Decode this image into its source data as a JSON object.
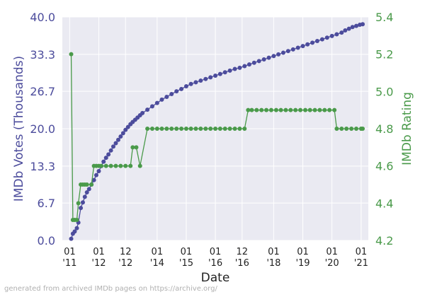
{
  "chart_data": {
    "type": "line",
    "xlabel": "Date",
    "ylabel_left": "IMDb Votes (Thousands)",
    "ylabel_right": "IMDb Rating",
    "x_ticks": [
      {
        "date": "2011-01-01",
        "line1": "01",
        "line2": "'11"
      },
      {
        "date": "2012-01-01",
        "line1": "01",
        "line2": "'12"
      },
      {
        "date": "2012-12-01",
        "line1": "12",
        "line2": "'12"
      },
      {
        "date": "2014-01-01",
        "line1": "01",
        "line2": "'14"
      },
      {
        "date": "2015-01-01",
        "line1": "01",
        "line2": "'15"
      },
      {
        "date": "2016-01-01",
        "line1": "01",
        "line2": "'16"
      },
      {
        "date": "2016-12-01",
        "line1": "12",
        "line2": "'16"
      },
      {
        "date": "2018-01-01",
        "line1": "01",
        "line2": "'18"
      },
      {
        "date": "2019-01-01",
        "line1": "01",
        "line2": "'19"
      },
      {
        "date": "2020-01-01",
        "line1": "01",
        "line2": "'20"
      },
      {
        "date": "2021-01-01",
        "line1": "01",
        "line2": "'21"
      }
    ],
    "xlim": [
      "2010-10-01",
      "2021-04-01"
    ],
    "y_left_ticks": [
      "0.0",
      "6.7",
      "13.3",
      "20.0",
      "26.7",
      "33.3",
      "40.0"
    ],
    "y_left_lim": [
      0,
      40
    ],
    "y_right_ticks": [
      "4.2",
      "4.4",
      "4.6",
      "4.8",
      "5.0",
      "5.2",
      "5.4"
    ],
    "y_right_lim": [
      4.2,
      5.4
    ],
    "grid": true,
    "colors": {
      "votes": "#4c4c9c",
      "rating": "#4a9a4a",
      "plot_bg": "#eaeaf2",
      "grid": "#ffffff"
    },
    "series": [
      {
        "axis": "left",
        "points": [
          [
            "2011-01-20",
            0.3
          ],
          [
            "2011-02-10",
            1.2
          ],
          [
            "2011-03-05",
            1.6
          ],
          [
            "2011-04-01",
            2.2
          ],
          [
            "2011-04-20",
            3.2
          ],
          [
            "2011-05-20",
            5.8
          ],
          [
            "2011-06-15",
            6.8
          ],
          [
            "2011-07-10",
            7.8
          ],
          [
            "2011-08-05",
            8.6
          ],
          [
            "2011-09-01",
            9.2
          ],
          [
            "2011-10-01",
            10.0
          ],
          [
            "2011-11-01",
            10.8
          ],
          [
            "2011-12-01",
            11.7
          ],
          [
            "2012-01-01",
            12.4
          ],
          [
            "2012-02-01",
            13.3
          ],
          [
            "2012-03-01",
            14.1
          ],
          [
            "2012-04-01",
            14.8
          ],
          [
            "2012-05-01",
            15.4
          ],
          [
            "2012-06-01",
            16.1
          ],
          [
            "2012-07-01",
            16.8
          ],
          [
            "2012-08-01",
            17.4
          ],
          [
            "2012-09-01",
            18.0
          ],
          [
            "2012-10-01",
            18.6
          ],
          [
            "2012-11-01",
            19.2
          ],
          [
            "2012-12-01",
            19.8
          ],
          [
            "2013-01-01",
            20.3
          ],
          [
            "2013-02-01",
            20.8
          ],
          [
            "2013-03-01",
            21.2
          ],
          [
            "2013-04-01",
            21.6
          ],
          [
            "2013-05-01",
            22.0
          ],
          [
            "2013-06-01",
            22.4
          ],
          [
            "2013-07-01",
            22.8
          ],
          [
            "2013-09-01",
            23.4
          ],
          [
            "2013-11-01",
            24.0
          ],
          [
            "2014-01-01",
            24.6
          ],
          [
            "2014-03-01",
            25.2
          ],
          [
            "2014-05-01",
            25.7
          ],
          [
            "2014-07-01",
            26.2
          ],
          [
            "2014-09-01",
            26.7
          ],
          [
            "2014-11-01",
            27.1
          ],
          [
            "2015-01-01",
            27.6
          ],
          [
            "2015-03-01",
            28.0
          ],
          [
            "2015-05-01",
            28.3
          ],
          [
            "2015-07-01",
            28.6
          ],
          [
            "2015-09-01",
            28.9
          ],
          [
            "2015-11-01",
            29.2
          ],
          [
            "2016-01-01",
            29.5
          ],
          [
            "2016-03-01",
            29.8
          ],
          [
            "2016-05-01",
            30.1
          ],
          [
            "2016-07-01",
            30.4
          ],
          [
            "2016-09-01",
            30.7
          ],
          [
            "2016-11-01",
            30.9
          ],
          [
            "2017-01-01",
            31.2
          ],
          [
            "2017-03-01",
            31.5
          ],
          [
            "2017-05-01",
            31.8
          ],
          [
            "2017-07-01",
            32.1
          ],
          [
            "2017-09-01",
            32.4
          ],
          [
            "2017-11-01",
            32.7
          ],
          [
            "2018-01-01",
            33.0
          ],
          [
            "2018-03-01",
            33.3
          ],
          [
            "2018-05-01",
            33.6
          ],
          [
            "2018-07-01",
            33.9
          ],
          [
            "2018-09-01",
            34.2
          ],
          [
            "2018-11-01",
            34.5
          ],
          [
            "2019-01-01",
            34.8
          ],
          [
            "2019-03-01",
            35.1
          ],
          [
            "2019-05-01",
            35.4
          ],
          [
            "2019-07-01",
            35.7
          ],
          [
            "2019-09-01",
            36.0
          ],
          [
            "2019-11-01",
            36.3
          ],
          [
            "2020-01-01",
            36.6
          ],
          [
            "2020-03-01",
            36.9
          ],
          [
            "2020-05-01",
            37.2
          ],
          [
            "2020-06-15",
            37.6
          ],
          [
            "2020-08-01",
            37.9
          ],
          [
            "2020-09-15",
            38.2
          ],
          [
            "2020-11-01",
            38.4
          ],
          [
            "2020-12-15",
            38.6
          ],
          [
            "2021-01-20",
            38.7
          ]
        ]
      },
      {
        "axis": "right",
        "points": [
          [
            "2011-01-20",
            5.2
          ],
          [
            "2011-02-10",
            4.31
          ],
          [
            "2011-03-05",
            4.31
          ],
          [
            "2011-04-01",
            4.31
          ],
          [
            "2011-04-20",
            4.4
          ],
          [
            "2011-05-20",
            4.5
          ],
          [
            "2011-06-15",
            4.5
          ],
          [
            "2011-07-10",
            4.5
          ],
          [
            "2011-08-05",
            4.5
          ],
          [
            "2011-10-01",
            4.5
          ],
          [
            "2011-11-01",
            4.6
          ],
          [
            "2011-12-01",
            4.6
          ],
          [
            "2012-01-01",
            4.6
          ],
          [
            "2012-02-01",
            4.6
          ],
          [
            "2012-04-01",
            4.6
          ],
          [
            "2012-06-01",
            4.6
          ],
          [
            "2012-08-01",
            4.6
          ],
          [
            "2012-10-01",
            4.6
          ],
          [
            "2012-12-01",
            4.6
          ],
          [
            "2013-02-01",
            4.6
          ],
          [
            "2013-03-01",
            4.7
          ],
          [
            "2013-04-15",
            4.7
          ],
          [
            "2013-06-01",
            4.6
          ],
          [
            "2013-09-01",
            4.8
          ],
          [
            "2013-11-01",
            4.8
          ],
          [
            "2014-01-01",
            4.8
          ],
          [
            "2014-03-01",
            4.8
          ],
          [
            "2014-05-01",
            4.8
          ],
          [
            "2014-07-01",
            4.8
          ],
          [
            "2014-09-01",
            4.8
          ],
          [
            "2014-11-01",
            4.8
          ],
          [
            "2015-01-01",
            4.8
          ],
          [
            "2015-03-01",
            4.8
          ],
          [
            "2015-05-01",
            4.8
          ],
          [
            "2015-07-01",
            4.8
          ],
          [
            "2015-09-01",
            4.8
          ],
          [
            "2015-11-01",
            4.8
          ],
          [
            "2016-01-01",
            4.8
          ],
          [
            "2016-03-01",
            4.8
          ],
          [
            "2016-05-01",
            4.8
          ],
          [
            "2016-07-01",
            4.8
          ],
          [
            "2016-09-01",
            4.8
          ],
          [
            "2016-11-01",
            4.8
          ],
          [
            "2017-01-01",
            4.8
          ],
          [
            "2017-02-15",
            4.9
          ],
          [
            "2017-04-01",
            4.9
          ],
          [
            "2017-06-01",
            4.9
          ],
          [
            "2017-08-01",
            4.9
          ],
          [
            "2017-10-01",
            4.9
          ],
          [
            "2017-12-01",
            4.9
          ],
          [
            "2018-02-01",
            4.9
          ],
          [
            "2018-04-01",
            4.9
          ],
          [
            "2018-06-01",
            4.9
          ],
          [
            "2018-08-01",
            4.9
          ],
          [
            "2018-10-01",
            4.9
          ],
          [
            "2018-12-01",
            4.9
          ],
          [
            "2019-02-01",
            4.9
          ],
          [
            "2019-04-01",
            4.9
          ],
          [
            "2019-06-01",
            4.9
          ],
          [
            "2019-08-01",
            4.9
          ],
          [
            "2019-10-01",
            4.9
          ],
          [
            "2019-12-01",
            4.9
          ],
          [
            "2020-02-01",
            4.9
          ],
          [
            "2020-03-01",
            4.8
          ],
          [
            "2020-05-01",
            4.8
          ],
          [
            "2020-07-01",
            4.8
          ],
          [
            "2020-09-01",
            4.8
          ],
          [
            "2020-11-01",
            4.8
          ],
          [
            "2021-01-01",
            4.8
          ],
          [
            "2021-01-20",
            4.8
          ]
        ]
      }
    ]
  },
  "footer": "generated from archived IMDb pages on https://archive.org/"
}
